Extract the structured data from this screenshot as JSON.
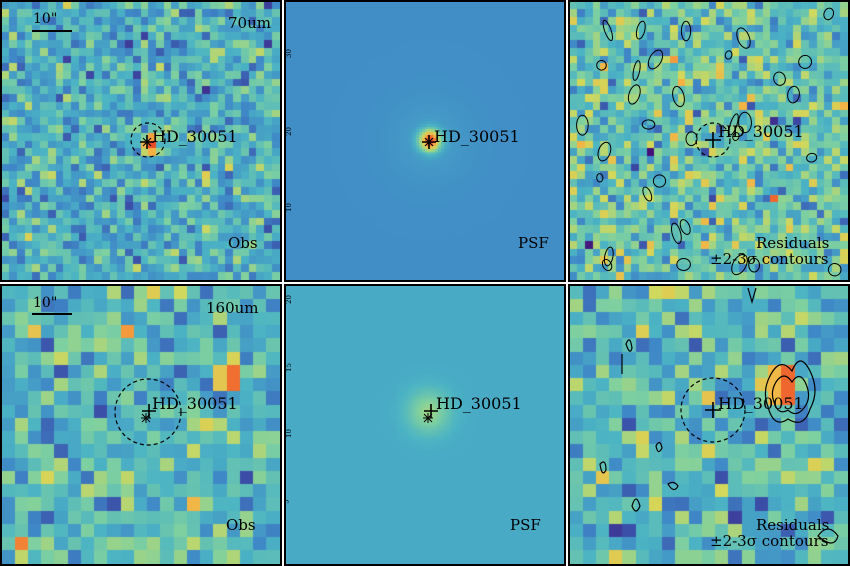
{
  "figure": {
    "rows": [
      {
        "band": "70um",
        "scalebar": "10\"",
        "source": "HD_30051",
        "panels": [
          {
            "type": "Obs",
            "label": "Obs"
          },
          {
            "type": "PSF",
            "label": "PSF",
            "tick_labels": [
              "30",
              "20",
              "10"
            ]
          },
          {
            "type": "Residuals",
            "label": "Residuals",
            "sublabel": "±2-3σ contours"
          }
        ]
      },
      {
        "band": "160um",
        "scalebar": "10\"",
        "source": "HD_30051",
        "panels": [
          {
            "type": "Obs",
            "label": "Obs"
          },
          {
            "type": "PSF",
            "label": "PSF",
            "tick_labels": [
              "20",
              "15",
              "10",
              "5"
            ]
          },
          {
            "type": "Residuals",
            "label": "Residuals",
            "sublabel": "±2-3σ contours"
          }
        ]
      }
    ],
    "colormap": [
      "#440f76",
      "#3b4fa8",
      "#3f87c7",
      "#4bb3c4",
      "#7ed0a0",
      "#d3d85a",
      "#f6b042",
      "#ec4a26"
    ]
  }
}
